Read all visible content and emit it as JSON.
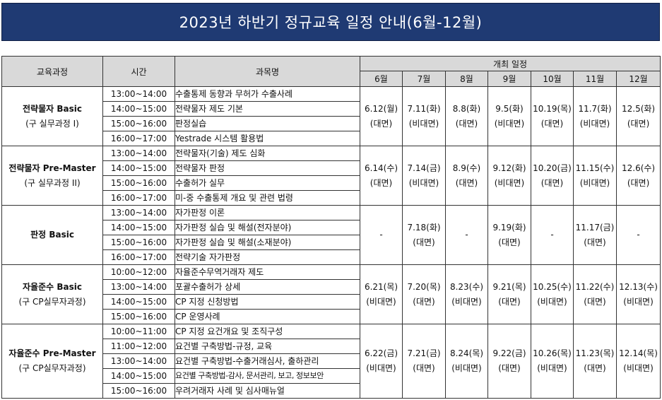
{
  "title": "2023년 하반기 정규교육 일정 안내(6월-12월)",
  "headers": {
    "course": "교육과정",
    "time": "시간",
    "subject": "과목명",
    "schedule": "개최 일정",
    "months": [
      "6월",
      "7월",
      "8월",
      "9월",
      "10월",
      "11월",
      "12월"
    ]
  },
  "courses": [
    {
      "name": "전략물자 Basic",
      "sub": "(구 실무과정 I)",
      "sessions": [
        {
          "time": "13:00~14:00",
          "subject": "수출통제 동향과 무허가 수출사례"
        },
        {
          "time": "14:00~15:00",
          "subject": "전략물자 제도 기본"
        },
        {
          "time": "15:00~16:00",
          "subject": "판정실습"
        },
        {
          "time": "16:00~17:00",
          "subject": "Yestrade 시스템 활용법"
        }
      ],
      "dates": [
        {
          "date": "6.12(월)",
          "mode": "(대면)"
        },
        {
          "date": "7.11(화)",
          "mode": "(비대면)"
        },
        {
          "date": "8.8(화)",
          "mode": "(대면)"
        },
        {
          "date": "9.5(화)",
          "mode": "(비대면)"
        },
        {
          "date": "10.19(목)",
          "mode": "(대면)"
        },
        {
          "date": "11.7(화)",
          "mode": "(비대면)"
        },
        {
          "date": "12.5(화)",
          "mode": "(대면)"
        }
      ]
    },
    {
      "name": "전략물자 Pre-Master",
      "sub": "(구 실무과정 II)",
      "sessions": [
        {
          "time": "13:00~14:00",
          "subject": "전략물자(기술) 제도 심화"
        },
        {
          "time": "14:00~15:00",
          "subject": "전략물자 판정"
        },
        {
          "time": "15:00~16:00",
          "subject": "수출허가 실무"
        },
        {
          "time": "16:00~17:00",
          "subject": "미-중 수출통제 개요 및 관련 법령"
        }
      ],
      "dates": [
        {
          "date": "6.14(수)",
          "mode": "(대면)"
        },
        {
          "date": "7.14(금)",
          "mode": "(비대면)"
        },
        {
          "date": "8.9(수)",
          "mode": "(대면)"
        },
        {
          "date": "9.12(화)",
          "mode": "(비대면)"
        },
        {
          "date": "10.20(금)",
          "mode": "(대면)"
        },
        {
          "date": "11.15(수)",
          "mode": "(비대면)"
        },
        {
          "date": "12.6(수)",
          "mode": "(대면)"
        }
      ]
    },
    {
      "name": "판정 Basic",
      "sub": "",
      "sessions": [
        {
          "time": "13:00~14:00",
          "subject": "자가판정 이론"
        },
        {
          "time": "14:00~15:00",
          "subject": "자가판정 실습 및 해설(전자분야)"
        },
        {
          "time": "15:00~16:00",
          "subject": "자가판정 실습 및 해설(소재분야)"
        },
        {
          "time": "16:00~17:00",
          "subject": "전략기술 자가판정"
        }
      ],
      "dates": [
        {
          "date": "-",
          "mode": ""
        },
        {
          "date": "7.18(화)",
          "mode": "(대면)"
        },
        {
          "date": "-",
          "mode": ""
        },
        {
          "date": "9.19(화)",
          "mode": "(대면)"
        },
        {
          "date": "-",
          "mode": ""
        },
        {
          "date": "11.17(금)",
          "mode": "(대면)"
        },
        {
          "date": "-",
          "mode": ""
        }
      ]
    },
    {
      "name": "자율준수 Basic",
      "sub": "(구 CP실무자과정)",
      "sessions": [
        {
          "time": "10:00~12:00",
          "subject": "자율준수무역거래자 제도"
        },
        {
          "time": "13:00~14:00",
          "subject": "포괄수출허가 상세"
        },
        {
          "time": "14:00~15:00",
          "subject": "CP 지정 신청방법"
        },
        {
          "time": "15:00~16:00",
          "subject": "CP 운영사례"
        }
      ],
      "dates": [
        {
          "date": "6.21(목)",
          "mode": "(비대면)"
        },
        {
          "date": "7.20(목)",
          "mode": "(대면)"
        },
        {
          "date": "8.23(수)",
          "mode": "(비대면)"
        },
        {
          "date": "9.21(목)",
          "mode": "(대면)"
        },
        {
          "date": "10.25(수)",
          "mode": "(비대면)"
        },
        {
          "date": "11.22(수)",
          "mode": "(대면)"
        },
        {
          "date": "12.13(수)",
          "mode": "(비대면)"
        }
      ]
    },
    {
      "name": "자율준수 Pre-Master",
      "sub": "(구 CP실무자과정)",
      "sessions": [
        {
          "time": "10:00~11:00",
          "subject": "CP 지정 요건개요 및 조직구성"
        },
        {
          "time": "11:00~12:00",
          "subject": "요건별 구축방법-규정, 교육"
        },
        {
          "time": "13:00~14:00",
          "subject": "요건별 구축방법-수출거래심사, 출하관리"
        },
        {
          "time": "14:00~15:00",
          "subject": "요건별 구축방법-감사, 문서관리, 보고, 정보보안"
        },
        {
          "time": "15:00~16:00",
          "subject": "우려거래자 사례 및 심사매뉴얼"
        }
      ],
      "dates": [
        {
          "date": "6.22(금)",
          "mode": "(비대면)"
        },
        {
          "date": "7.21(금)",
          "mode": "(대면)"
        },
        {
          "date": "8.24(목)",
          "mode": "(비대면)"
        },
        {
          "date": "9.22(금)",
          "mode": "(대면)"
        },
        {
          "date": "10.26(목)",
          "mode": "(비대면)"
        },
        {
          "date": "11.23(목)",
          "mode": "(대면)"
        },
        {
          "date": "12.14(목)",
          "mode": "(비대면)"
        }
      ]
    }
  ]
}
